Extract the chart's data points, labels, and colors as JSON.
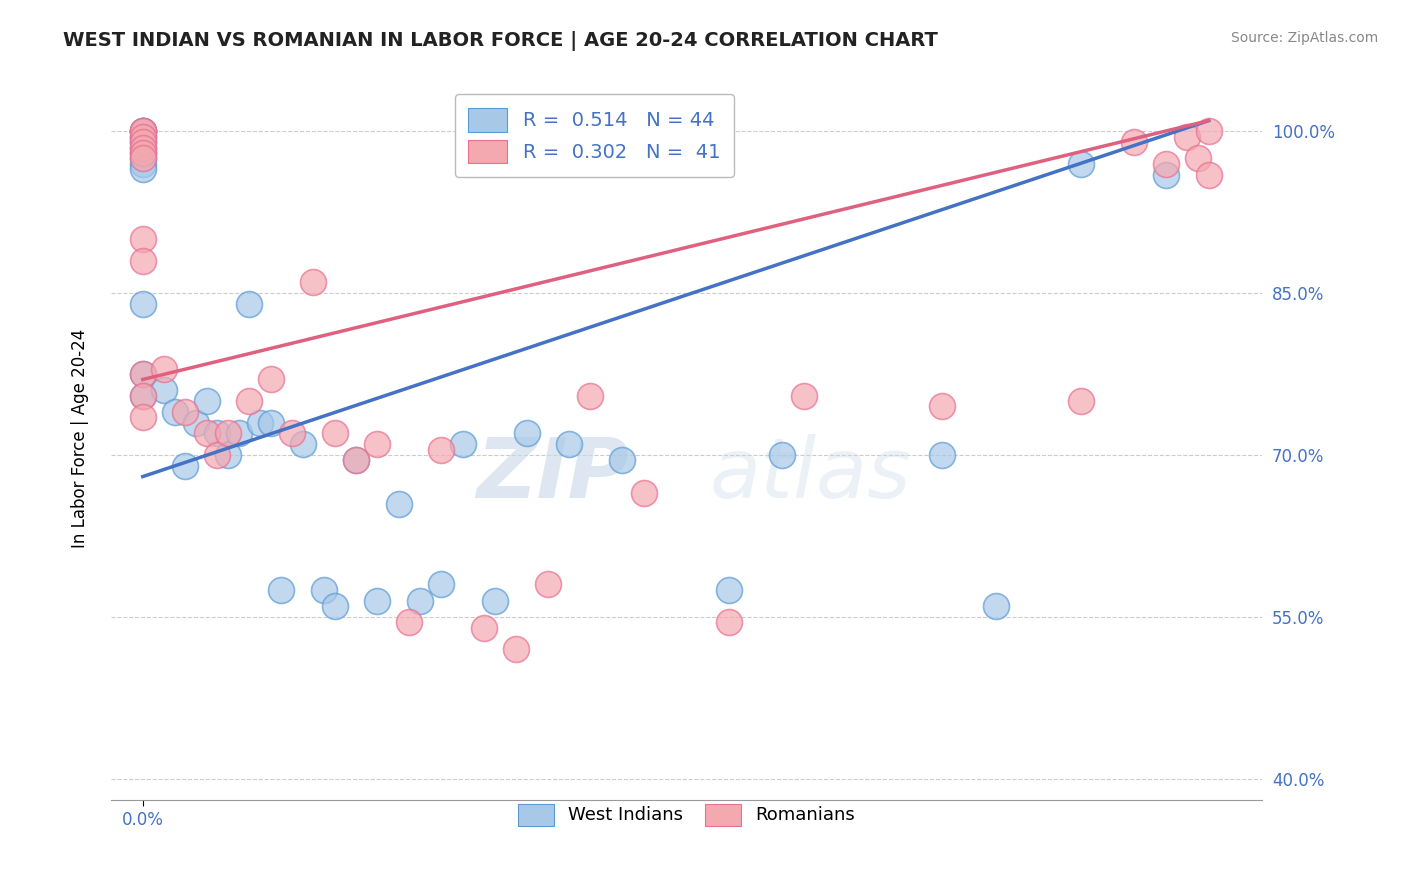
{
  "title": "WEST INDIAN VS ROMANIAN IN LABOR FORCE | AGE 20-24 CORRELATION CHART",
  "source": "Source: ZipAtlas.com",
  "ylabel": "In Labor Force | Age 20-24",
  "xlim": [
    -0.03,
    1.05
  ],
  "ylim": [
    0.38,
    1.05
  ],
  "y_ticks": [
    0.4,
    0.55,
    0.7,
    0.85,
    1.0
  ],
  "y_tick_labels": [
    "40.0%",
    "55.0%",
    "70.0%",
    "85.0%",
    "100.0%"
  ],
  "blue_color": "#a8c8e8",
  "pink_color": "#f4a8b0",
  "blue_edge_color": "#5b9bd5",
  "pink_edge_color": "#e87090",
  "blue_line_color": "#4472c4",
  "pink_line_color": "#e06080",
  "blue_R": 0.514,
  "pink_R": 0.302,
  "blue_N": 44,
  "pink_N": 41,
  "background_color": "#ffffff",
  "grid_color": "#cccccc",
  "tick_color": "#4472c4",
  "title_color": "#222222",
  "source_color": "#888888",
  "west_indian_x": [
    0.0,
    0.0,
    0.0,
    0.0,
    0.0,
    0.0,
    0.0,
    0.0,
    0.0,
    0.0,
    0.0,
    0.0,
    0.0,
    0.02,
    0.03,
    0.04,
    0.05,
    0.06,
    0.07,
    0.08,
    0.09,
    0.1,
    0.11,
    0.12,
    0.13,
    0.15,
    0.17,
    0.18,
    0.2,
    0.22,
    0.24,
    0.26,
    0.28,
    0.3,
    0.33,
    0.36,
    0.4,
    0.45,
    0.55,
    0.6,
    0.75,
    0.8,
    0.88,
    0.96
  ],
  "west_indian_y": [
    1.0,
    1.0,
    1.0,
    0.995,
    0.99,
    0.985,
    0.98,
    0.975,
    0.97,
    0.965,
    0.84,
    0.775,
    0.755,
    0.76,
    0.74,
    0.69,
    0.73,
    0.75,
    0.72,
    0.7,
    0.72,
    0.84,
    0.73,
    0.73,
    0.575,
    0.71,
    0.575,
    0.56,
    0.695,
    0.565,
    0.655,
    0.565,
    0.58,
    0.71,
    0.565,
    0.72,
    0.71,
    0.695,
    0.575,
    0.7,
    0.7,
    0.56,
    0.97,
    0.96
  ],
  "romanian_x": [
    0.0,
    0.0,
    0.0,
    0.0,
    0.0,
    0.0,
    0.0,
    0.0,
    0.0,
    0.0,
    0.0,
    0.0,
    0.02,
    0.04,
    0.06,
    0.07,
    0.08,
    0.1,
    0.12,
    0.14,
    0.16,
    0.18,
    0.2,
    0.22,
    0.25,
    0.28,
    0.32,
    0.35,
    0.38,
    0.42,
    0.47,
    0.55,
    0.62,
    0.75,
    0.88,
    0.93,
    0.96,
    0.98,
    0.99,
    1.0,
    1.0
  ],
  "romanian_y": [
    1.0,
    1.0,
    0.995,
    0.99,
    0.985,
    0.98,
    0.975,
    0.9,
    0.88,
    0.775,
    0.755,
    0.735,
    0.78,
    0.74,
    0.72,
    0.7,
    0.72,
    0.75,
    0.77,
    0.72,
    0.86,
    0.72,
    0.695,
    0.71,
    0.545,
    0.705,
    0.54,
    0.52,
    0.58,
    0.755,
    0.665,
    0.545,
    0.755,
    0.745,
    0.75,
    0.99,
    0.97,
    0.995,
    0.975,
    1.0,
    0.96
  ]
}
